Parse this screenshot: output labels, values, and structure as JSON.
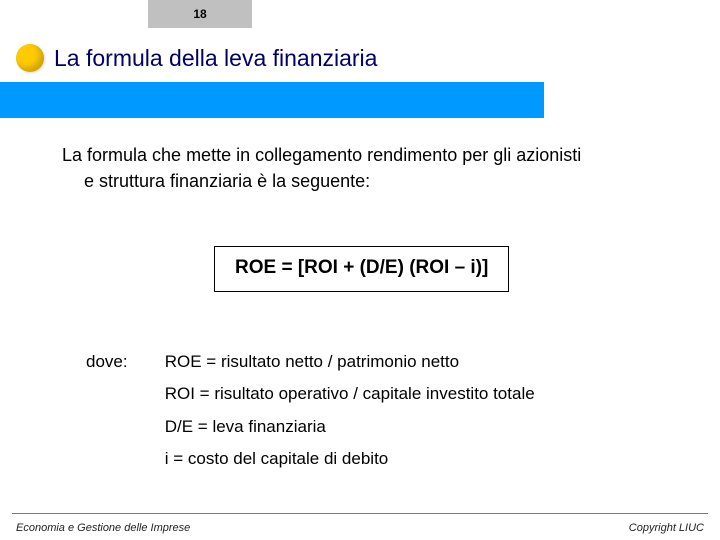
{
  "page_number": "18",
  "title": "La formula della leva finanziaria",
  "colors": {
    "title_color": "#000066",
    "bullet_color": "#feca00",
    "bar_color": "#0099ff",
    "page_box_bg": "#c0c0c0"
  },
  "body": {
    "line1": "La formula che mette in collegamento rendimento per gli azionisti",
    "line2": "e struttura finanziaria è la seguente:"
  },
  "formula": "ROE = [ROI + (D/E) (ROI – i)]",
  "dove_label": "dove:",
  "definitions": {
    "roe": "ROE = risultato netto / patrimonio netto",
    "roi": "ROI = risultato operativo / capitale investito totale",
    "de": "D/E = leva finanziaria",
    "i": "i = costo del capitale di debito"
  },
  "footer": {
    "left": "Economia e Gestione delle Imprese",
    "right": "Copyright LIUC"
  }
}
